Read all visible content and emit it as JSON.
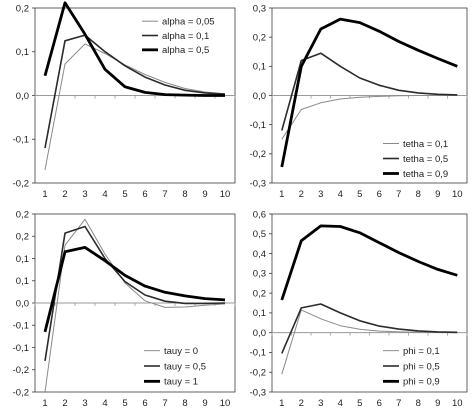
{
  "chart_data": [
    {
      "type": "line",
      "x": [
        1,
        2,
        3,
        4,
        5,
        6,
        7,
        8,
        9,
        10
      ],
      "ylim": [
        -0.2,
        0.2
      ],
      "yticks": [
        "-0,2",
        "-0,1",
        "0,0",
        "0,1",
        "0,2"
      ],
      "legend": "top-right",
      "series": [
        {
          "name": "alpha = 0,05",
          "values": [
            -0.17,
            0.072,
            0.118,
            0.096,
            0.07,
            0.048,
            0.03,
            0.016,
            0.008,
            0.004
          ]
        },
        {
          "name": "alpha = 0,1",
          "values": [
            -0.12,
            0.125,
            0.138,
            0.1,
            0.068,
            0.042,
            0.024,
            0.012,
            0.006,
            0.003
          ]
        },
        {
          "name": "alpha = 0,5",
          "values": [
            0.045,
            0.212,
            0.14,
            0.06,
            0.02,
            0.007,
            0.002,
            0.001,
            0.0,
            0.0
          ]
        }
      ]
    },
    {
      "type": "line",
      "x": [
        1,
        2,
        3,
        4,
        5,
        6,
        7,
        8,
        9,
        10
      ],
      "ylim": [
        -0.3,
        0.3
      ],
      "yticks": [
        "-0,3",
        "-0,2",
        "-0,1",
        "0,0",
        "0,1",
        "0,2",
        "0,3"
      ],
      "legend": "bottom-right",
      "series": [
        {
          "name": "tetha = 0,1",
          "values": [
            -0.15,
            -0.048,
            -0.025,
            -0.012,
            -0.006,
            -0.003,
            -0.001,
            0.0,
            0.0,
            0.0
          ]
        },
        {
          "name": "tetha = 0,5",
          "values": [
            -0.12,
            0.12,
            0.145,
            0.1,
            0.06,
            0.035,
            0.018,
            0.009,
            0.004,
            0.002
          ]
        },
        {
          "name": "tetha = 0,9",
          "values": [
            -0.245,
            0.1,
            0.228,
            0.262,
            0.25,
            0.22,
            0.185,
            0.155,
            0.127,
            0.1
          ]
        }
      ]
    },
    {
      "type": "line",
      "x": [
        1,
        2,
        3,
        4,
        5,
        6,
        7,
        8,
        9,
        10
      ],
      "ylim": [
        -0.2,
        0.2
      ],
      "yticks": [
        "-0,2",
        "-0,2",
        "-0,1",
        "-0,1",
        "0,0",
        "0,1",
        "0,1",
        "0,2",
        "0,2"
      ],
      "legend": "bottom-right",
      "series": [
        {
          "name": "tauy = 0",
          "values": [
            -0.2,
            0.13,
            0.188,
            0.11,
            0.045,
            0.005,
            -0.01,
            -0.009,
            -0.005,
            -0.002
          ]
        },
        {
          "name": "tauy = 0,5",
          "values": [
            -0.13,
            0.157,
            0.172,
            0.1,
            0.048,
            0.018,
            0.004,
            -0.001,
            -0.001,
            0.0
          ]
        },
        {
          "name": "tauy = 1",
          "values": [
            -0.065,
            0.115,
            0.125,
            0.095,
            0.062,
            0.038,
            0.024,
            0.016,
            0.01,
            0.007
          ]
        }
      ]
    },
    {
      "type": "line",
      "x": [
        1,
        2,
        3,
        4,
        5,
        6,
        7,
        8,
        9,
        10
      ],
      "ylim": [
        -0.3,
        0.6
      ],
      "yticks": [
        "-0,3",
        "-0,2",
        "-0,1",
        "0,0",
        "0,1",
        "0,2",
        "0,3",
        "0,4",
        "0,5",
        "0,6"
      ],
      "legend": "bottom-right",
      "series": [
        {
          "name": "phi = 0,1",
          "values": [
            -0.21,
            0.115,
            0.07,
            0.035,
            0.017,
            0.008,
            0.004,
            0.002,
            0.001,
            0.0
          ]
        },
        {
          "name": "phi = 0,5",
          "values": [
            -0.105,
            0.125,
            0.145,
            0.1,
            0.06,
            0.033,
            0.018,
            0.009,
            0.004,
            0.002
          ]
        },
        {
          "name": "phi = 0,9",
          "values": [
            0.165,
            0.465,
            0.54,
            0.537,
            0.505,
            0.455,
            0.405,
            0.36,
            0.32,
            0.29
          ]
        }
      ]
    }
  ],
  "colors": {
    "thin_line": "#8a8a8a",
    "mid_line": "#2b2b2b",
    "thick_line": "#000000",
    "axis": "#9a9a9a",
    "frame": "#3a3a3a",
    "text": "#222222"
  }
}
